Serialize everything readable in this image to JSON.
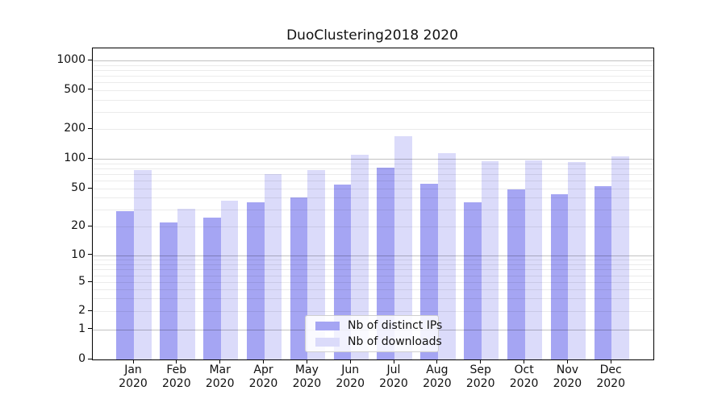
{
  "figure": {
    "background": "#ffffff"
  },
  "chart_data": {
    "type": "bar",
    "title": "DuoClustering2018 2020",
    "categories": [
      "Jan",
      "Feb",
      "Mar",
      "Apr",
      "May",
      "Jun",
      "Jul",
      "Aug",
      "Sep",
      "Oct",
      "Nov",
      "Dec"
    ],
    "x_tick_second_line": "2020",
    "series": [
      {
        "name": "Nb of distinct IPs",
        "color": "#a5a5f3",
        "values": [
          29,
          22,
          25,
          36,
          40,
          55,
          82,
          56,
          36,
          49,
          44,
          53
        ]
      },
      {
        "name": "Nb of downloads",
        "color": "#dbdbfa",
        "values": [
          77,
          31,
          37,
          70,
          77,
          110,
          170,
          115,
          95,
          97,
          92,
          105
        ]
      }
    ],
    "xlabel": "",
    "ylabel": "",
    "yscale": "symlog",
    "ylim": [
      0,
      1330
    ],
    "y_ticks": [
      0,
      1,
      2,
      5,
      10,
      20,
      50,
      100,
      200,
      500,
      1000
    ],
    "grid": "horizontal minor+major, light gray",
    "legend_position": "lower center"
  }
}
